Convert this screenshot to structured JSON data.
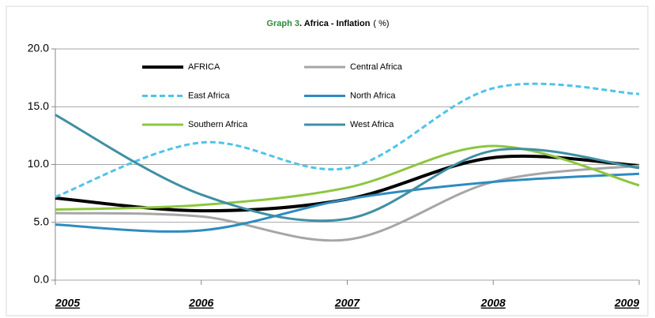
{
  "chart_data": {
    "type": "line",
    "title": {
      "label": "Graph 3",
      "text": ". Africa - Inflation",
      "unit": "( %)"
    },
    "categories": [
      "2005",
      "2006",
      "2007",
      "2008",
      "2009"
    ],
    "ylim": [
      0,
      20
    ],
    "yticks": [
      {
        "value": 0,
        "label": "0.0"
      },
      {
        "value": 5,
        "label": "5.0"
      },
      {
        "value": 10,
        "label": "10.0"
      },
      {
        "value": 15,
        "label": "15.0"
      },
      {
        "value": 20,
        "label": "20.0"
      }
    ],
    "grid": true,
    "series": [
      {
        "name": "AFRICA",
        "color": "#000000",
        "dash": false,
        "values": [
          7.1,
          6.0,
          7.0,
          10.6,
          9.9
        ]
      },
      {
        "name": "Central Africa",
        "color": "#a6a6a6",
        "dash": false,
        "values": [
          5.8,
          5.5,
          3.5,
          8.5,
          9.9
        ]
      },
      {
        "name": "East Africa",
        "color": "#4fc3e8",
        "dash": true,
        "values": [
          7.2,
          11.9,
          9.7,
          16.6,
          16.1
        ]
      },
      {
        "name": "North Africa",
        "color": "#2e8bc0",
        "dash": false,
        "values": [
          4.8,
          4.3,
          7.0,
          8.5,
          9.2
        ]
      },
      {
        "name": "Southern Africa",
        "color": "#8dc63f",
        "dash": false,
        "values": [
          6.1,
          6.5,
          8.0,
          11.6,
          8.2
        ]
      },
      {
        "name": "West Africa",
        "color": "#3f8fa3",
        "dash": false,
        "values": [
          14.3,
          7.4,
          5.3,
          11.2,
          9.7
        ]
      }
    ]
  }
}
